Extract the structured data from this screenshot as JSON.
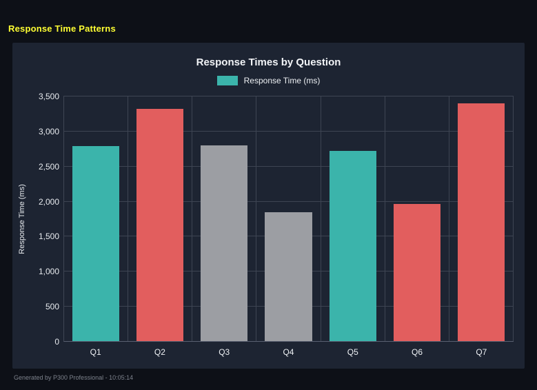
{
  "header": {
    "title": "Response Time Patterns"
  },
  "footer": {
    "text": "Generated by P300 Professional - 10:05:14"
  },
  "colors": {
    "page_bg": "#0d1017",
    "panel_bg": "#1d2432",
    "grid": "#3e4553",
    "teal": "#3bb4ab",
    "red": "#e25e5e",
    "gray": "#9c9ea3",
    "title_yellow": "#ffff33",
    "text": "#f2f4f7"
  },
  "chart_data": {
    "type": "bar",
    "title": "Response Times by Question",
    "legend": "Response Time (ms)",
    "legend_color": "#3bb4ab",
    "legend_position": "top",
    "ylabel": "Response Time (ms)",
    "xlabel": "",
    "categories": [
      "Q1",
      "Q2",
      "Q3",
      "Q4",
      "Q5",
      "Q6",
      "Q7"
    ],
    "values": [
      2790,
      3320,
      2800,
      1840,
      2720,
      1960,
      3400
    ],
    "bar_colors": [
      "#3bb4ab",
      "#e25e5e",
      "#9c9ea3",
      "#9c9ea3",
      "#3bb4ab",
      "#e25e5e",
      "#e25e5e"
    ],
    "ylim": [
      0,
      3500
    ],
    "ytick_values": [
      0,
      500,
      1000,
      1500,
      2000,
      2500,
      3000,
      3500
    ],
    "ytick_labels": [
      "0",
      "500",
      "1,000",
      "1,500",
      "2,000",
      "2,500",
      "3,000",
      "3,500"
    ],
    "grid": true
  }
}
